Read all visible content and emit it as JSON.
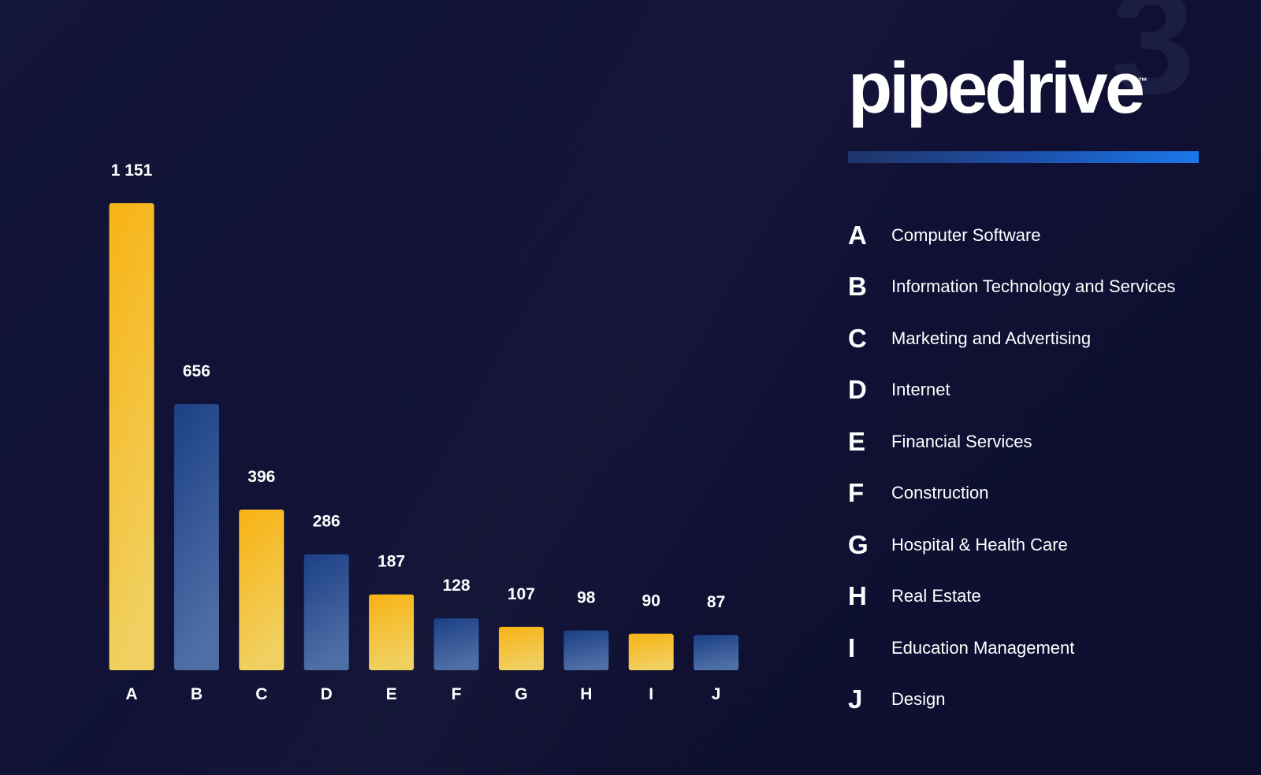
{
  "brand": {
    "logo_text": "pipedrive",
    "trademark": "™",
    "background_number": "3",
    "underline_colors": [
      "#1f3468",
      "#1a78ea"
    ]
  },
  "colors": {
    "background": "#111236",
    "bar_yellow_top": "#f8b213",
    "bar_yellow_bottom": "#f0d060",
    "bar_blue_top": "#1c3f86",
    "bar_blue_bottom": "#4e6fa6",
    "text": "#ffffff"
  },
  "chart_data": {
    "type": "bar",
    "categories": [
      "A",
      "B",
      "C",
      "D",
      "E",
      "F",
      "G",
      "H",
      "I",
      "J"
    ],
    "values": [
      1151,
      656,
      396,
      286,
      187,
      128,
      107,
      98,
      90,
      87
    ],
    "value_labels": [
      "1 151",
      "656",
      "396",
      "286",
      "187",
      "128",
      "107",
      "98",
      "90",
      "87"
    ],
    "bar_colors": [
      "yellow",
      "blue",
      "yellow",
      "blue",
      "yellow",
      "blue",
      "yellow",
      "blue",
      "yellow",
      "blue"
    ],
    "title": "",
    "xlabel": "",
    "ylabel": "",
    "ylim": [
      0,
      1151
    ],
    "grid": false,
    "legend_placement": "right"
  },
  "legend": [
    {
      "key": "A",
      "label": "Computer Software"
    },
    {
      "key": "B",
      "label": "Information Technology and Services"
    },
    {
      "key": "C",
      "label": "Marketing and Advertising"
    },
    {
      "key": "D",
      "label": "Internet"
    },
    {
      "key": "E",
      "label": "Financial Services"
    },
    {
      "key": "F",
      "label": "Construction"
    },
    {
      "key": "G",
      "label": "Hospital & Health Care"
    },
    {
      "key": "H",
      "label": "Real Estate"
    },
    {
      "key": "I",
      "label": "Education Management"
    },
    {
      "key": "J",
      "label": "Design"
    }
  ]
}
